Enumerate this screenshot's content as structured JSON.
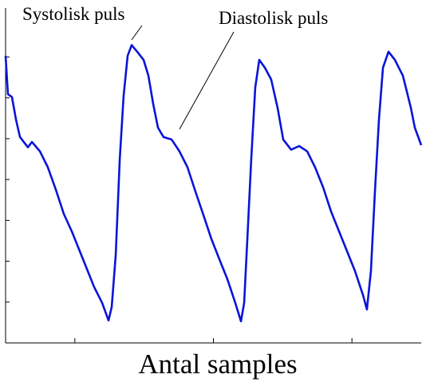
{
  "chart_data": {
    "type": "line",
    "xlabel": "Antal samples",
    "annotations": [
      "Systolisk puls",
      "Diastolisk puls"
    ],
    "x": [
      0,
      1.7,
      4.6,
      7.5,
      10.4,
      16.1,
      19.0,
      24.8,
      30.5,
      36.3,
      42.0,
      47.8,
      53.5,
      59.3,
      63.9,
      69.7,
      74.3,
      76.6,
      79.5,
      82.4,
      85.2,
      88.1,
      91.0,
      95.0,
      99.6,
      103.1,
      106.5,
      110.0,
      114.0,
      119.8,
      125.5,
      131.3,
      137.0,
      142.8,
      148.6,
      154.3,
      160.1,
      165.8,
      169.9,
      172.2,
      174.5,
      177.3,
      180.2,
      183.1,
      187.1,
      191.7,
      196.3,
      200.4,
      206.1,
      211.9,
      217.7,
      223.4,
      229.2,
      234.9,
      240.7,
      246.4,
      252.2,
      258.0,
      260.8,
      263.7,
      266.6,
      269.5,
      272.4,
      276.4,
      281.0,
      286.8,
      292.5,
      295.4,
      300
    ],
    "series": [
      {
        "color": "#0a14d8",
        "values": [
          7.03,
          6.09,
          6.02,
          5.47,
          5.04,
          4.79,
          4.92,
          4.69,
          4.3,
          3.75,
          3.16,
          2.73,
          2.25,
          1.76,
          1.37,
          0.98,
          0.55,
          0.88,
          2.15,
          4.49,
          6.05,
          7.03,
          7.29,
          7.13,
          6.93,
          6.54,
          5.86,
          5.27,
          5.04,
          4.98,
          4.69,
          4.3,
          3.71,
          3.13,
          2.54,
          2.05,
          1.56,
          0.98,
          0.53,
          0.98,
          2.54,
          4.49,
          6.25,
          6.93,
          6.74,
          6.45,
          5.76,
          4.98,
          4.73,
          4.82,
          4.69,
          4.3,
          3.81,
          3.22,
          2.73,
          2.25,
          1.76,
          1.17,
          0.82,
          1.76,
          3.71,
          5.47,
          6.74,
          7.13,
          6.93,
          6.54,
          5.76,
          5.27,
          4.84
        ]
      }
    ],
    "xlim": [
      0,
      300
    ],
    "xticks": [
      50,
      150,
      250
    ],
    "ylim": [
      0,
      8.2
    ],
    "yticks": [
      1,
      2,
      3,
      4,
      5,
      6,
      7
    ]
  }
}
